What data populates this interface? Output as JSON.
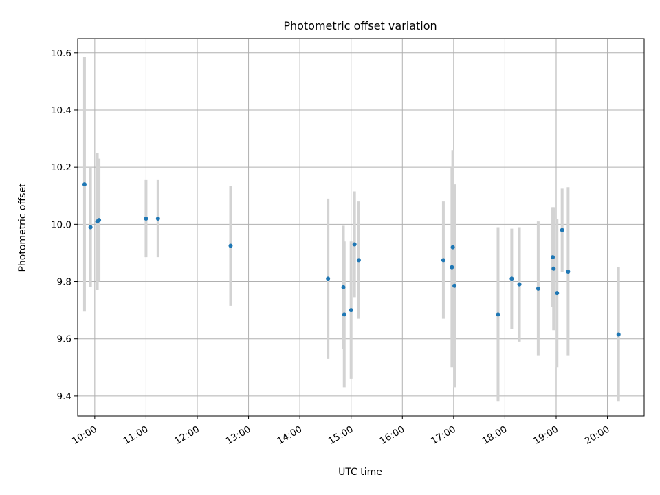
{
  "chart_data": {
    "type": "scatter",
    "title": "Photometric offset variation",
    "xlabel": "UTC time",
    "ylabel": "Photometric offset",
    "x_tick_labels": [
      "10:00",
      "11:00",
      "12:00",
      "13:00",
      "14:00",
      "15:00",
      "16:00",
      "17:00",
      "18:00",
      "19:00",
      "20:00"
    ],
    "y_tick_labels": [
      "9.4",
      "9.6",
      "9.8",
      "10.0",
      "10.2",
      "10.4",
      "10.6"
    ],
    "xlim": [
      "09:40",
      "20:43"
    ],
    "ylim": [
      9.33,
      10.65
    ],
    "grid": true,
    "colors": {
      "point": "#1f77b4",
      "errorbar": "#d3d3d3",
      "grid": "#b0b0b0"
    },
    "points": [
      {
        "time": "09:48",
        "value": 10.14,
        "error": 0.445
      },
      {
        "time": "09:55",
        "value": 9.99,
        "error": 0.21
      },
      {
        "time": "10:03",
        "value": 10.01,
        "error": 0.24
      },
      {
        "time": "10:05",
        "value": 10.015,
        "error": 0.215
      },
      {
        "time": "11:00",
        "value": 10.02,
        "error": 0.135
      },
      {
        "time": "11:14",
        "value": 10.02,
        "error": 0.135
      },
      {
        "time": "12:39",
        "value": 9.925,
        "error": 0.21
      },
      {
        "time": "14:33",
        "value": 9.81,
        "error": 0.28
      },
      {
        "time": "14:51",
        "value": 9.78,
        "error": 0.215
      },
      {
        "time": "14:52",
        "value": 9.685,
        "error": 0.255
      },
      {
        "time": "15:00",
        "value": 9.7,
        "error": 0.24
      },
      {
        "time": "15:04",
        "value": 9.93,
        "error": 0.185
      },
      {
        "time": "15:09",
        "value": 9.875,
        "error": 0.205
      },
      {
        "time": "16:48",
        "value": 9.875,
        "error": 0.205
      },
      {
        "time": "16:58",
        "value": 9.85,
        "error": 0.35
      },
      {
        "time": "16:59",
        "value": 9.92,
        "error": 0.34
      },
      {
        "time": "17:01",
        "value": 9.785,
        "error": 0.355
      },
      {
        "time": "17:52",
        "value": 9.685,
        "error": 0.305
      },
      {
        "time": "18:08",
        "value": 9.81,
        "error": 0.175
      },
      {
        "time": "18:17",
        "value": 9.79,
        "error": 0.2
      },
      {
        "time": "18:39",
        "value": 9.775,
        "error": 0.235
      },
      {
        "time": "18:56",
        "value": 9.885,
        "error": 0.175
      },
      {
        "time": "18:57",
        "value": 9.845,
        "error": 0.215
      },
      {
        "time": "19:01",
        "value": 9.76,
        "error": 0.26
      },
      {
        "time": "19:07",
        "value": 9.98,
        "error": 0.145
      },
      {
        "time": "19:14",
        "value": 9.835,
        "error": 0.295
      },
      {
        "time": "20:13",
        "value": 9.615,
        "error": 0.235
      }
    ]
  }
}
